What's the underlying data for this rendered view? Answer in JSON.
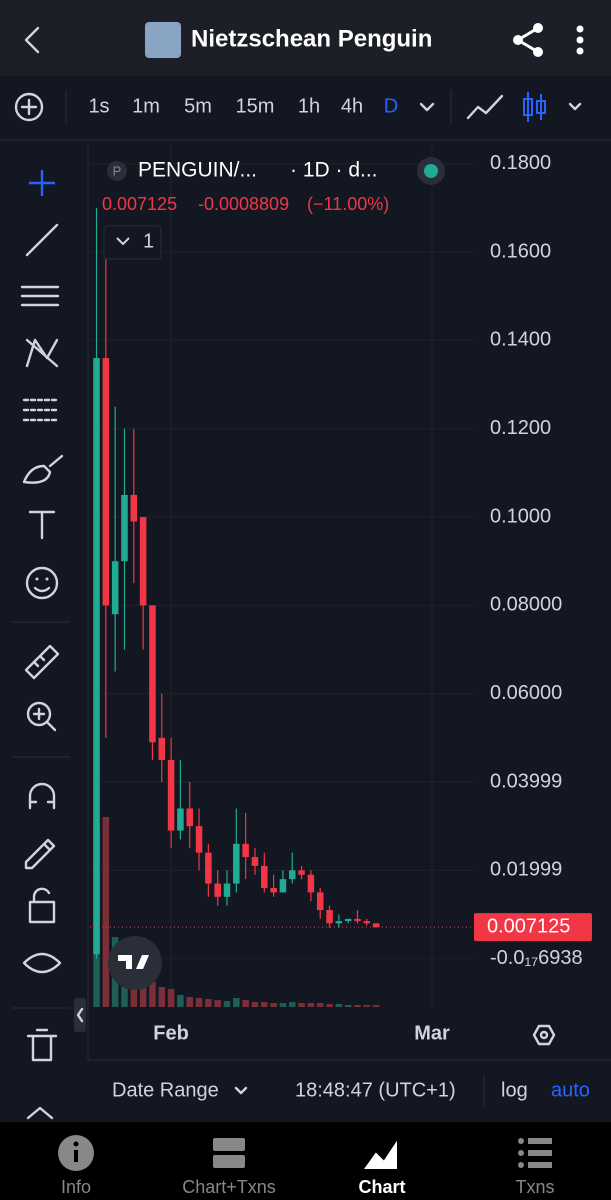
{
  "header": {
    "title": "Nietzschean Penguin"
  },
  "toolbar": {
    "intervals": [
      "1s",
      "1m",
      "5m",
      "15m",
      "1h",
      "4h",
      "D"
    ],
    "selected_interval": 6
  },
  "chart_data": {
    "type": "candlestick",
    "symbol_badge": "P",
    "symbol": "PENGUIN/...",
    "interval": "· 1D · d...",
    "quote": {
      "last": 0.007125,
      "change": -0.0008809,
      "change_pct": "(−11.00%)"
    },
    "indicator_count": "1",
    "up_color": "#22ab94",
    "down_color": "#f23645",
    "up_volume_color": "#1d5e55",
    "down_volume_color": "#7a2e37",
    "open": [
      0.001,
      0.136,
      0.078,
      0.09,
      0.105,
      0.1,
      0.08,
      0.05,
      0.045,
      0.029,
      0.034,
      0.03,
      0.024,
      0.017,
      0.014,
      0.017,
      0.026,
      0.023,
      0.021,
      0.016,
      0.015,
      0.018,
      0.02,
      0.019,
      0.015,
      0.011,
      0.008,
      0.0085,
      0.009,
      0.0085,
      0.008
    ],
    "high": [
      0.17,
      0.163,
      0.125,
      0.12,
      0.12,
      0.1,
      0.08,
      0.06,
      0.05,
      0.045,
      0.04,
      0.034,
      0.026,
      0.02,
      0.02,
      0.034,
      0.033,
      0.025,
      0.024,
      0.019,
      0.02,
      0.024,
      0.021,
      0.02,
      0.016,
      0.012,
      0.01,
      0.009,
      0.011,
      0.009,
      0.008
    ],
    "low": [
      0,
      0.05,
      0.065,
      0.07,
      0.085,
      0.07,
      0.045,
      0.04,
      0.025,
      0.027,
      0.025,
      0.02,
      0.014,
      0.012,
      0.012,
      0.015,
      0.018,
      0.019,
      0.015,
      0.014,
      0.015,
      0.017,
      0.018,
      0.013,
      0.009,
      0.007,
      0.007,
      0.008,
      0.008,
      0.0075,
      0.007
    ],
    "close": [
      0.136,
      0.08,
      0.09,
      0.105,
      0.099,
      0.08,
      0.049,
      0.045,
      0.029,
      0.034,
      0.03,
      0.024,
      0.017,
      0.014,
      0.017,
      0.026,
      0.023,
      0.021,
      0.016,
      0.015,
      0.018,
      0.02,
      0.019,
      0.015,
      0.011,
      0.008,
      0.0085,
      0.009,
      0.0085,
      0.008,
      0.007125
    ],
    "volume": [
      182,
      190,
      70,
      60,
      40,
      30,
      25,
      20,
      18,
      12,
      10,
      9,
      8,
      7,
      6,
      9,
      7,
      5,
      5,
      4,
      4,
      5,
      4,
      4,
      4,
      3,
      3,
      2,
      2,
      2,
      2
    ],
    "xlim": [
      -0.7,
      40.5
    ],
    "xticks": [
      {
        "value": 8,
        "label": "Feb"
      },
      {
        "value": 36,
        "label": "Mar"
      }
    ],
    "ylim": [
      -0.01095,
      0.1847
    ],
    "yticks": [
      {
        "value": 0.18,
        "label": "0.1800"
      },
      {
        "value": 0.16,
        "label": "0.1600"
      },
      {
        "value": 0.14,
        "label": "0.1400"
      },
      {
        "value": 0.12,
        "label": "0.1200"
      },
      {
        "value": 0.1,
        "label": "0.1000"
      },
      {
        "value": 0.08,
        "label": "0.08000"
      },
      {
        "value": 0.06,
        "label": "0.06000"
      },
      0.03999,
      0.01999,
      {
        "value": -6.938e-18,
        "label": "-0.0₁₇6938"
      }
    ],
    "last_price": 0.007125,
    "grid": true
  },
  "footer": {
    "date_range": "Date Range",
    "time": "18:48:47 (UTC+1)",
    "log": "log",
    "auto": "auto"
  },
  "nav": {
    "items": [
      "Info",
      "Chart+Txns",
      "Chart",
      "Txns"
    ],
    "selected": 2
  }
}
